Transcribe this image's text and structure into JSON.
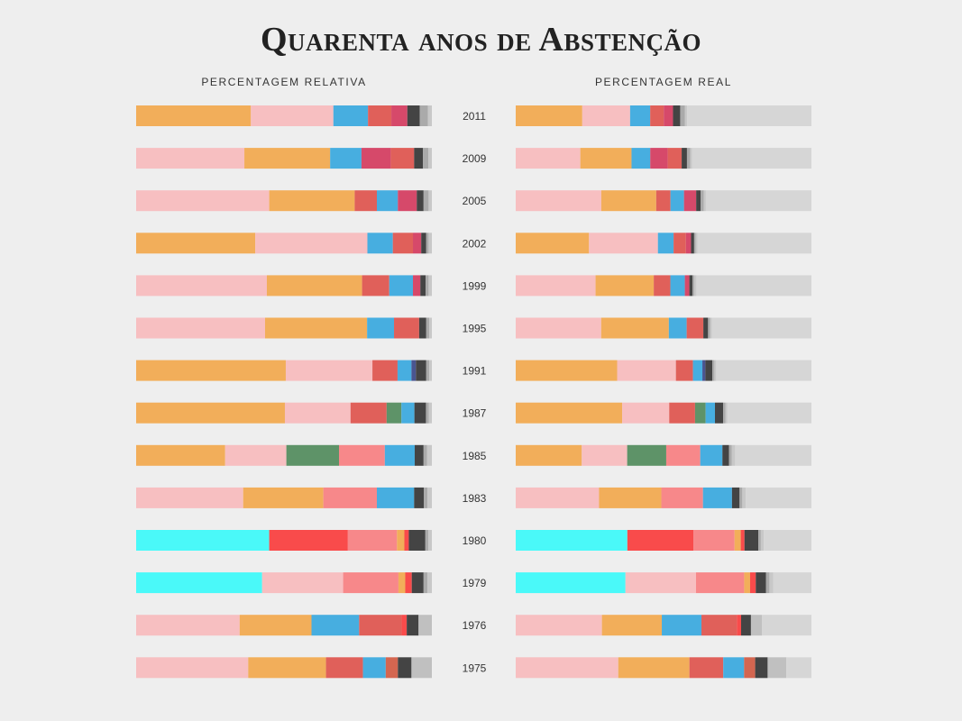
{
  "title": "Quarenta anos de Abstenção",
  "headers": {
    "left": "PERCENTAGEM RELATIVA",
    "right": "PERCENTAGEM REAL"
  },
  "chart_data": {
    "type": "bar",
    "stacked": true,
    "orientation": "horizontal",
    "title": "Quarenta anos de Abstenção",
    "panels": [
      "PERCENTAGEM RELATIVA",
      "PERCENTAGEM REAL"
    ],
    "abstention_color": "#d6d6d6",
    "rows": [
      {
        "year": "2011",
        "abstention": 42.0,
        "segments": [
          [
            "#f2ae5a",
            38.8
          ],
          [
            "#f7bfc1",
            27.9
          ],
          [
            "#47aee0",
            11.7
          ],
          [
            "#e0605a",
            7.9
          ],
          [
            "#d6496a",
            5.4
          ],
          [
            "#444444",
            4.2
          ],
          [
            "#aaaaaa",
            2.8
          ],
          [
            "#c8c8c8",
            1.3
          ]
        ]
      },
      {
        "year": "2009",
        "abstention": 40.3,
        "segments": [
          [
            "#f7bfc1",
            36.6
          ],
          [
            "#f2ae5a",
            29.0
          ],
          [
            "#47aee0",
            10.6
          ],
          [
            "#d6496a",
            9.9
          ],
          [
            "#e0605a",
            7.9
          ],
          [
            "#444444",
            3.0
          ],
          [
            "#aaaaaa",
            1.8
          ],
          [
            "#c8c8c8",
            1.2
          ]
        ]
      },
      {
        "year": "2005",
        "abstention": 35.7,
        "segments": [
          [
            "#f7bfc1",
            45.0
          ],
          [
            "#f2ae5a",
            28.9
          ],
          [
            "#e0605a",
            7.5
          ],
          [
            "#47aee0",
            7.1
          ],
          [
            "#d6496a",
            6.4
          ],
          [
            "#444444",
            2.3
          ],
          [
            "#aaaaaa",
            1.7
          ],
          [
            "#c8c8c8",
            1.1
          ]
        ]
      },
      {
        "year": "2002",
        "abstention": 38.5,
        "segments": [
          [
            "#f2ae5a",
            40.3
          ],
          [
            "#f7bfc1",
            37.9
          ],
          [
            "#47aee0",
            8.6
          ],
          [
            "#e0605a",
            6.8
          ],
          [
            "#d6496a",
            2.8
          ],
          [
            "#444444",
            1.7
          ],
          [
            "#aaaaaa",
            0.8
          ],
          [
            "#c8c8c8",
            1.1
          ]
        ]
      },
      {
        "year": "1999",
        "abstention": 38.9,
        "segments": [
          [
            "#f7bfc1",
            44.2
          ],
          [
            "#f2ae5a",
            32.2
          ],
          [
            "#e0605a",
            9.2
          ],
          [
            "#47aee0",
            8.0
          ],
          [
            "#d6496a",
            2.5
          ],
          [
            "#444444",
            1.8
          ],
          [
            "#aaaaaa",
            1.0
          ],
          [
            "#c8c8c8",
            1.1
          ]
        ]
      },
      {
        "year": "1995",
        "abstention": 33.7,
        "segments": [
          [
            "#f7bfc1",
            43.6
          ],
          [
            "#f2ae5a",
            34.5
          ],
          [
            "#47aee0",
            9.1
          ],
          [
            "#e0605a",
            8.5
          ],
          [
            "#444444",
            2.4
          ],
          [
            "#aaaaaa",
            1.0
          ],
          [
            "#c8c8c8",
            0.9
          ]
        ]
      },
      {
        "year": "1991",
        "abstention": 32.2,
        "segments": [
          [
            "#f2ae5a",
            50.6
          ],
          [
            "#f7bfc1",
            29.3
          ],
          [
            "#e0605a",
            8.5
          ],
          [
            "#47aee0",
            4.7
          ],
          [
            "#4a5590",
            1.5
          ],
          [
            "#444444",
            3.5
          ],
          [
            "#aaaaaa",
            1.0
          ],
          [
            "#c8c8c8",
            0.9
          ]
        ]
      },
      {
        "year": "1987",
        "abstention": 28.4,
        "segments": [
          [
            "#f2ae5a",
            50.3
          ],
          [
            "#f7bfc1",
            22.2
          ],
          [
            "#e0605a",
            12.2
          ],
          [
            "#5e9368",
            5.0
          ],
          [
            "#47aee0",
            4.4
          ],
          [
            "#444444",
            3.9
          ],
          [
            "#aaaaaa",
            1.0
          ],
          [
            "#c8c8c8",
            1.0
          ]
        ]
      },
      {
        "year": "1985",
        "abstention": 25.8,
        "segments": [
          [
            "#f2ae5a",
            30.1
          ],
          [
            "#f7bfc1",
            20.7
          ],
          [
            "#5e9368",
            17.8
          ],
          [
            "#f7888a",
            15.5
          ],
          [
            "#47aee0",
            10.1
          ],
          [
            "#444444",
            3.0
          ],
          [
            "#aaaaaa",
            1.2
          ],
          [
            "#c8c8c8",
            1.6
          ]
        ]
      },
      {
        "year": "1983",
        "abstention": 22.2,
        "segments": [
          [
            "#f7bfc1",
            36.2
          ],
          [
            "#f2ae5a",
            27.1
          ],
          [
            "#f7888a",
            18.1
          ],
          [
            "#47aee0",
            12.6
          ],
          [
            "#444444",
            3.3
          ],
          [
            "#aaaaaa",
            1.2
          ],
          [
            "#c8c8c8",
            1.5
          ]
        ]
      },
      {
        "year": "1980",
        "abstention": 16.1,
        "segments": [
          [
            "#4af9f9",
            45.0
          ],
          [
            "#f94b4b",
            26.6
          ],
          [
            "#f7888a",
            16.6
          ],
          [
            "#f2ae5a",
            2.5
          ],
          [
            "#f94b4b",
            1.5
          ],
          [
            "#444444",
            5.6
          ],
          [
            "#aaaaaa",
            1.0
          ],
          [
            "#c8c8c8",
            1.2
          ]
        ]
      },
      {
        "year": "1979",
        "abstention": 12.9,
        "segments": [
          [
            "#4af9f9",
            42.6
          ],
          [
            "#f7bfc1",
            27.4
          ],
          [
            "#f7888a",
            18.7
          ],
          [
            "#f2ae5a",
            2.3
          ],
          [
            "#f94b4b",
            2.2
          ],
          [
            "#444444",
            4.0
          ],
          [
            "#aaaaaa",
            1.3
          ],
          [
            "#c8c8c8",
            1.5
          ]
        ]
      },
      {
        "year": "1976",
        "abstention": 16.7,
        "segments": [
          [
            "#f7bfc1",
            35.0
          ],
          [
            "#f2ae5a",
            24.3
          ],
          [
            "#47aee0",
            16.1
          ],
          [
            "#e0605a",
            14.4
          ],
          [
            "#f94b4b",
            1.7
          ],
          [
            "#444444",
            4.0
          ],
          [
            "#c0c0c0",
            4.5
          ]
        ]
      },
      {
        "year": "1975",
        "abstention": 8.5,
        "segments": [
          [
            "#f7bfc1",
            37.9
          ],
          [
            "#f2ae5a",
            26.3
          ],
          [
            "#e0605a",
            12.5
          ],
          [
            "#47aee0",
            7.7
          ],
          [
            "#d46650",
            4.1
          ],
          [
            "#444444",
            4.6
          ],
          [
            "#c0c0c0",
            6.9
          ]
        ]
      }
    ]
  }
}
